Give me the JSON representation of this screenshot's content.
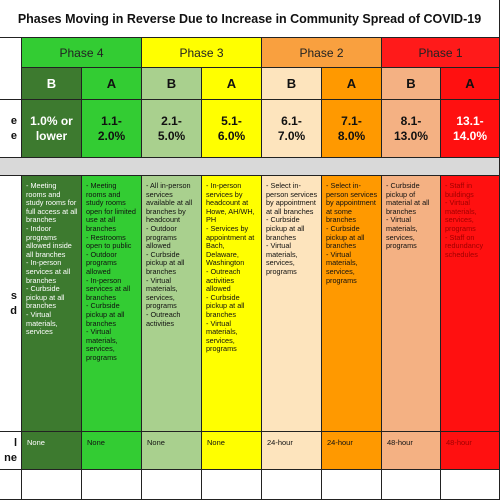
{
  "title": "Phases Moving in Reverse Due to Increase in Community Spread of COVID-19",
  "phases": [
    "Phase 4",
    "Phase 3",
    "Phase 2",
    "Phase 1"
  ],
  "levels": [
    "B",
    "A",
    "B",
    "A",
    "B",
    "A",
    "B",
    "A"
  ],
  "row_labels": {
    "rate": [
      "e",
      "e"
    ],
    "services": [
      "s",
      "d"
    ],
    "wait": [
      "l",
      "ne"
    ]
  },
  "rates": [
    [
      "1.0% or",
      "lower"
    ],
    [
      "1.1-",
      "2.0%"
    ],
    [
      "2.1-",
      "5.0%"
    ],
    [
      "5.1-",
      "6.0%"
    ],
    [
      "6.1-",
      "7.0%"
    ],
    [
      "7.1-",
      "8.0%"
    ],
    [
      "8.1-",
      "13.0%"
    ],
    [
      "13.1-",
      "14.0%"
    ]
  ],
  "services": [
    [
      "- Meeting rooms and study rooms for full access at all branches",
      "- Indoor programs allowed inside all branches",
      "- In-person services at all branches",
      "- Curbside pickup at all branches",
      "- Virtual materials, services"
    ],
    [
      "- Meeting rooms and study rooms open for limited use at all branches",
      "- Restrooms open to public",
      "- Outdoor programs allowed",
      "- In-person services at all branches",
      "- Curbside pickup at all branches",
      "- Virtual materials, services, programs"
    ],
    [
      "- All in-person services available at all branches by headcount",
      "- Outdoor programs allowed",
      "- Curbside pickup at all branches",
      "- Virtual materials, services, programs",
      "- Outreach activities"
    ],
    [
      "- In-person services by headcount at Howe, AH/WH, PH",
      "- Services by appointment at Bach, Delaware, Washington",
      "- Outreach activities allowed",
      "- Curbside pickup at all branches",
      "- Virtual materials, services, programs"
    ],
    [
      "- Select in-person services by appointment at all branches",
      "- Curbside pickup at all branches",
      "- Virtual materials, services, programs"
    ],
    [
      "- Select in-person services by appointment at some branches",
      "- Curbside pickup at all branches",
      "- Virtual materials, services, programs"
    ],
    [
      "- Curbside pickup of material at all branches",
      "- Virtual materials, services, programs"
    ],
    [
      "- Staff in buildings",
      "- Virtual materials, services, programs",
      "- Staff on redundancy schedules"
    ]
  ],
  "wait": [
    "None",
    "None",
    "None",
    "None",
    "24-hour",
    "24-hour",
    "48-hour",
    "48-hour"
  ]
}
